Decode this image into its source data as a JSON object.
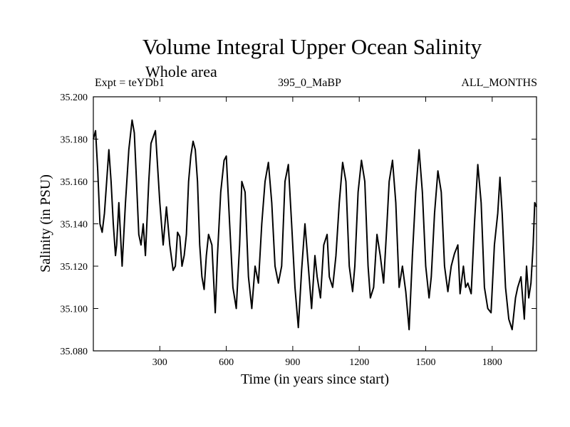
{
  "chart_data": {
    "type": "line",
    "title": "Volume Integral Upper Ocean Salinity",
    "subtitle": "Whole area",
    "left_label": "Expt = teYDb1",
    "center_label": "395_0_MaBP",
    "right_label": "ALL_MONTHS",
    "xlabel": "Time (in years since start)",
    "ylabel": "Salinity (in PSU)",
    "xlim": [
      0,
      2000
    ],
    "ylim": [
      35.08,
      35.2
    ],
    "xticks": [
      300,
      600,
      900,
      1200,
      1500,
      1800
    ],
    "yticks": [
      "35.080",
      "35.100",
      "35.120",
      "35.140",
      "35.160",
      "35.180",
      "35.200"
    ],
    "line_color": "#000000",
    "series": [
      {
        "name": "salinity",
        "x": [
          0,
          10,
          20,
          30,
          40,
          50,
          60,
          70,
          80,
          90,
          100,
          105,
          115,
          130,
          145,
          160,
          175,
          185,
          195,
          205,
          215,
          225,
          235,
          250,
          260,
          280,
          300,
          315,
          330,
          345,
          360,
          370,
          380,
          390,
          400,
          410,
          420,
          430,
          440,
          450,
          460,
          470,
          480,
          490,
          500,
          510,
          520,
          535,
          550,
          560,
          575,
          590,
          600,
          615,
          630,
          645,
          660,
          670,
          685,
          700,
          715,
          730,
          745,
          760,
          775,
          790,
          805,
          820,
          835,
          850,
          865,
          880,
          895,
          910,
          925,
          940,
          955,
          970,
          985,
          1000,
          1010,
          1025,
          1040,
          1055,
          1065,
          1080,
          1095,
          1110,
          1125,
          1140,
          1155,
          1170,
          1180,
          1195,
          1210,
          1225,
          1240,
          1250,
          1265,
          1280,
          1295,
          1310,
          1325,
          1335,
          1350,
          1365,
          1380,
          1395,
          1410,
          1425,
          1440,
          1455,
          1470,
          1485,
          1500,
          1515,
          1525,
          1540,
          1555,
          1570,
          1585,
          1600,
          1615,
          1630,
          1645,
          1655,
          1670,
          1680,
          1690,
          1705,
          1720,
          1735,
          1750,
          1765,
          1780,
          1795,
          1810,
          1825,
          1835,
          1845,
          1860,
          1875,
          1890,
          1905,
          1915,
          1930,
          1945,
          1955,
          1965,
          1975,
          1985,
          1992,
          2000
        ],
        "values": [
          35.18,
          35.184,
          35.165,
          35.14,
          35.136,
          35.145,
          35.16,
          35.175,
          35.16,
          35.14,
          35.125,
          35.13,
          35.15,
          35.12,
          35.15,
          35.175,
          35.189,
          35.183,
          35.16,
          35.135,
          35.13,
          35.14,
          35.125,
          35.16,
          35.178,
          35.184,
          35.15,
          35.13,
          35.148,
          35.13,
          35.118,
          35.12,
          35.136,
          35.134,
          35.12,
          35.125,
          35.135,
          35.16,
          35.172,
          35.179,
          35.175,
          35.16,
          35.13,
          35.115,
          35.109,
          35.125,
          35.135,
          35.13,
          35.098,
          35.125,
          35.155,
          35.17,
          35.172,
          35.14,
          35.11,
          35.1,
          35.13,
          35.16,
          35.155,
          35.115,
          35.1,
          35.12,
          35.112,
          35.14,
          35.16,
          35.169,
          35.15,
          35.12,
          35.112,
          35.12,
          35.16,
          35.168,
          35.14,
          35.11,
          35.091,
          35.118,
          35.14,
          35.12,
          35.1,
          35.125,
          35.115,
          35.105,
          35.13,
          35.135,
          35.115,
          35.11,
          35.125,
          35.15,
          35.169,
          35.16,
          35.12,
          35.108,
          35.12,
          35.155,
          35.17,
          35.16,
          35.12,
          35.105,
          35.11,
          35.135,
          35.125,
          35.112,
          35.14,
          35.16,
          35.17,
          35.15,
          35.11,
          35.12,
          35.108,
          35.09,
          35.125,
          35.155,
          35.175,
          35.155,
          35.12,
          35.105,
          35.115,
          35.145,
          35.165,
          35.155,
          35.12,
          35.108,
          35.12,
          35.126,
          35.13,
          35.107,
          35.12,
          35.11,
          35.112,
          35.107,
          35.14,
          35.168,
          35.15,
          35.11,
          35.1,
          35.098,
          35.13,
          35.145,
          35.162,
          35.145,
          35.11,
          35.095,
          35.09,
          35.105,
          35.11,
          35.115,
          35.095,
          35.12,
          35.105,
          35.112,
          35.13,
          35.15,
          35.148
        ]
      }
    ]
  }
}
